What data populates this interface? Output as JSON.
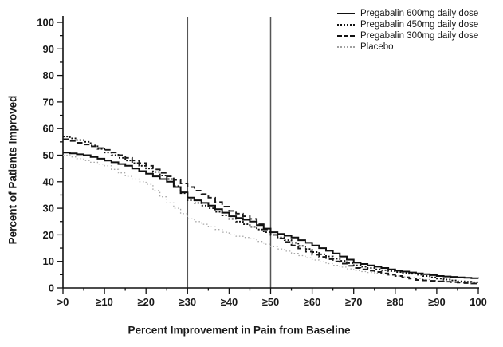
{
  "colors": {
    "background": "#ffffff",
    "axis": "#111111",
    "tick_text": "#1a1a1a",
    "ref_line": "#555555",
    "pregabalin_line": "#111111",
    "placebo_line": "#a8a8a8"
  },
  "chart_data": {
    "type": "line",
    "subtype": "step",
    "title": "",
    "xlabel": "Percent Improvement in Pain from Baseline",
    "ylabel": "Percent of Patients Improved",
    "xlim": [
      0,
      100
    ],
    "ylim": [
      0,
      100
    ],
    "grid": false,
    "legend_position": "top-right",
    "x_tick_labels": [
      ">0",
      "≥10",
      "≥20",
      "≥30",
      "≥40",
      "≥50",
      "≥60",
      "≥70",
      "≥80",
      "≥90",
      "100"
    ],
    "y_tick_labels": [
      "0",
      "10",
      "20",
      "30",
      "40",
      "50",
      "60",
      "70",
      "80",
      "90",
      "100"
    ],
    "reference_lines_x": [
      30,
      50
    ],
    "x": [
      0,
      5,
      10,
      15,
      20,
      25,
      30,
      35,
      40,
      45,
      50,
      55,
      60,
      65,
      70,
      75,
      80,
      85,
      90,
      95,
      100
    ],
    "series": [
      {
        "name": "Pregabalin 600mg daily dose",
        "style": "solid",
        "color": "#111111",
        "dash": "",
        "width": 2,
        "values": [
          51,
          50,
          48,
          46,
          43,
          40,
          34,
          31,
          27,
          25,
          21,
          19,
          16,
          13,
          9.5,
          8,
          6.5,
          5.5,
          4.5,
          4,
          3.5
        ]
      },
      {
        "name": "Pregabalin 450mg daily dose",
        "style": "dotted",
        "color": "#111111",
        "dash": "2 2.2",
        "width": 1.9,
        "values": [
          57,
          55,
          51,
          48,
          45,
          41,
          33,
          30,
          26,
          23,
          20,
          17,
          13.5,
          11,
          8.5,
          7,
          6,
          5,
          3.5,
          2.5,
          2
        ]
      },
      {
        "name": "Pregabalin 300mg daily dose",
        "style": "dashed",
        "color": "#1a1a1a",
        "dash": "7 4",
        "width": 1.9,
        "values": [
          56,
          54,
          52,
          49,
          46,
          42,
          38,
          34,
          29,
          26,
          20,
          16,
          12.5,
          10,
          7.5,
          6,
          4.5,
          3,
          2.5,
          2,
          1.5
        ]
      },
      {
        "name": "Placebo",
        "style": "fine-dotted",
        "color": "#a8a8a8",
        "dash": "1.5 2.8",
        "width": 1.3,
        "values": [
          50,
          48,
          46,
          42,
          39,
          32,
          26,
          23,
          20,
          18.5,
          15.5,
          13,
          10.5,
          8.5,
          6.5,
          5.5,
          4.5,
          3.5,
          2.5,
          2,
          1.5
        ]
      }
    ]
  }
}
